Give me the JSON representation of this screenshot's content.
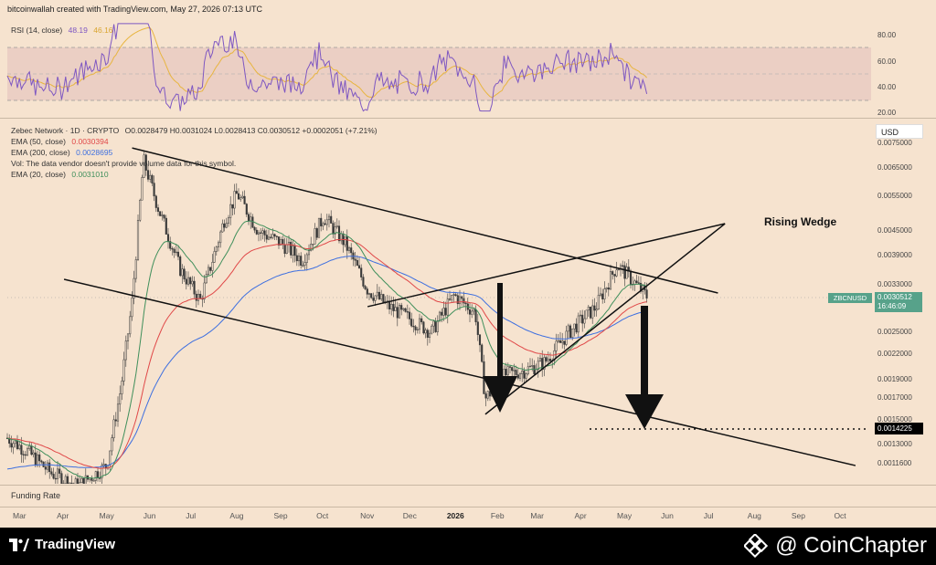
{
  "header": {
    "credit": "bitcoinwallah created with TradingView.com, May 27, 2026 07:13 UTC"
  },
  "rsi": {
    "label": "RSI (14, close)",
    "value": "48.19",
    "ma_value": "46.16",
    "value_color": "#7e57c2",
    "ma_color": "#e8b53f",
    "ticks": [
      "80.00",
      "60.00",
      "40.00",
      "20.00"
    ]
  },
  "main": {
    "symbol_line": "Zebec Network · 1D · CRYPTO",
    "ohlc": "O0.0028479 H0.0031024 L0.0028413 C0.0030512 +0.0002051 (+7.21%)",
    "ema50_label": "EMA (50, close)",
    "ema50_value": "0.0030394",
    "ema200_label": "EMA (200, close)",
    "ema200_value": "0.0028695",
    "vol_label": "Vol: The data vendor doesn't provide volume data for this symbol.",
    "ema20_label": "EMA (20, close)",
    "ema20_value": "0.0031010",
    "currency": "USD",
    "pattern_label": "Rising Wedge",
    "price_tag_symbol": "ZBCNUSD",
    "price_tag_value": "0.0030512",
    "price_tag_timer": "16:46:09",
    "target_value": "0.0014225",
    "colors": {
      "ema20": "#3f8f5b",
      "ema50": "#e04848",
      "ema200": "#3d6fe0",
      "up": "#3a3a3a",
      "down": "#3a3a3a",
      "accent": "#57a28a"
    }
  },
  "funding": {
    "label": "Funding Rate"
  },
  "time_axis": [
    "Mar",
    "Apr",
    "May",
    "Jun",
    "Jul",
    "Aug",
    "Sep",
    "Oct",
    "Nov",
    "Dec",
    "2026",
    "Feb",
    "Mar",
    "Apr",
    "May",
    "Jun",
    "Jul",
    "Aug",
    "Sep",
    "Oct"
  ],
  "footer": {
    "tv_brand": "TradingView",
    "cc_brand": "@ CoinChapter"
  },
  "chart_data": {
    "type": "candlestick",
    "title": "",
    "y_scale": "log",
    "y_ticks": [
      "0.0075000",
      "0.0065000",
      "0.0055000",
      "0.0045000",
      "0.0039000",
      "0.0033000",
      "0.0025000",
      "0.0022000",
      "0.0019000",
      "0.0017000",
      "0.0015000",
      "0.0013000",
      "0.0011600"
    ],
    "x_labels": [
      "Mar",
      "Apr",
      "May",
      "Jun",
      "Jul",
      "Aug",
      "Sep",
      "Oct",
      "Nov",
      "Dec",
      "2026",
      "Feb",
      "Mar",
      "Apr",
      "May",
      "Jun",
      "Jul",
      "Aug",
      "Sep",
      "Oct"
    ],
    "price_path": [
      [
        "2025-03-01",
        0.00135
      ],
      [
        "2025-03-15",
        0.00125
      ],
      [
        "2025-04-01",
        0.0011
      ],
      [
        "2025-04-20",
        0.00102
      ],
      [
        "2025-05-10",
        0.00115
      ],
      [
        "2025-05-20",
        0.0018
      ],
      [
        "2025-05-28",
        0.003
      ],
      [
        "2025-06-05",
        0.0068
      ],
      [
        "2025-06-15",
        0.0052
      ],
      [
        "2025-07-01",
        0.0036
      ],
      [
        "2025-07-15",
        0.003
      ],
      [
        "2025-08-01",
        0.0048
      ],
      [
        "2025-08-10",
        0.0056
      ],
      [
        "2025-08-25",
        0.0045
      ],
      [
        "2025-09-10",
        0.0042
      ],
      [
        "2025-09-25",
        0.0038
      ],
      [
        "2025-10-10",
        0.0049
      ],
      [
        "2025-10-25",
        0.0042
      ],
      [
        "2025-11-10",
        0.0032
      ],
      [
        "2025-11-25",
        0.0029
      ],
      [
        "2025-12-10",
        0.0027
      ],
      [
        "2025-12-25",
        0.0025
      ],
      [
        "2026-01-10",
        0.0031
      ],
      [
        "2026-01-25",
        0.0028
      ],
      [
        "2026-02-01",
        0.0017
      ],
      [
        "2026-02-15",
        0.00195
      ],
      [
        "2026-03-01",
        0.002
      ],
      [
        "2026-03-15",
        0.0021
      ],
      [
        "2026-04-01",
        0.0025
      ],
      [
        "2026-04-20",
        0.0029
      ],
      [
        "2026-05-05",
        0.0037
      ],
      [
        "2026-05-15",
        0.0034
      ],
      [
        "2026-05-27",
        0.00305
      ]
    ],
    "trendlines": [
      {
        "from": [
          "2025-05-28",
          0.0073
        ],
        "to": [
          "2026-07-15",
          0.00314
        ]
      },
      {
        "from": [
          "2025-04-10",
          0.0034
        ],
        "to": [
          "2026-10-20",
          0.00115
        ]
      },
      {
        "from": [
          "2025-11-10",
          0.0029
        ],
        "to": [
          "2026-07-20",
          0.0047
        ]
      },
      {
        "from": [
          "2026-02-01",
          0.00155
        ],
        "to": [
          "2026-07-20",
          0.0047
        ]
      }
    ],
    "target_level": 0.0014225,
    "annotation": "Rising Wedge"
  }
}
